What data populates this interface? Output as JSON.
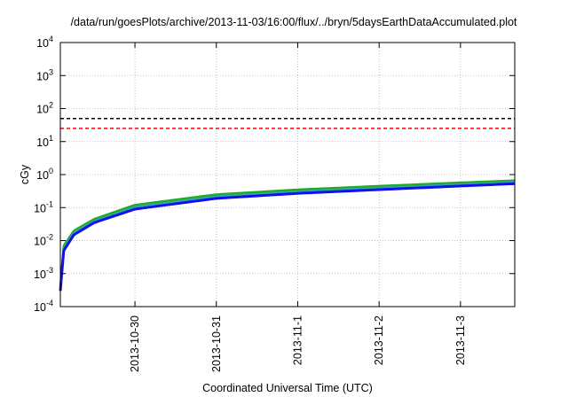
{
  "chart_data": {
    "type": "line",
    "title": "/data/run/goesPlots/archive/2013-11-03/16:00/flux/../bryn/5daysEarthDataAccumulated.plot",
    "xlabel": "Coordinated Universal Time (UTC)",
    "ylabel": "cGy",
    "yscale": "log",
    "ylim": [
      0.0001,
      10000
    ],
    "y_ticks": [
      {
        "value": 0.0001,
        "base": "10",
        "exp": "-4"
      },
      {
        "value": 0.001,
        "base": "10",
        "exp": "-3"
      },
      {
        "value": 0.01,
        "base": "10",
        "exp": "-2"
      },
      {
        "value": 0.1,
        "base": "10",
        "exp": "-1"
      },
      {
        "value": 1,
        "base": "10",
        "exp": "0"
      },
      {
        "value": 10,
        "base": "10",
        "exp": "1"
      },
      {
        "value": 100,
        "base": "10",
        "exp": "2"
      },
      {
        "value": 1000,
        "base": "10",
        "exp": "3"
      },
      {
        "value": 10000,
        "base": "10",
        "exp": "4"
      }
    ],
    "xlim": [
      "2013-10-29T02:00",
      "2013-11-03T16:00"
    ],
    "x_ticks": [
      "2013-10-30",
      "2013-10-31",
      "2013-11-1",
      "2013-11-2",
      "2013-11-3"
    ],
    "grid": true,
    "series": [
      {
        "color": "#22aa22",
        "width": 2.5,
        "style": "solid",
        "x": [
          "2013-10-29T02:00",
          "2013-10-29T03:00",
          "2013-10-29T06:00",
          "2013-10-29T12:00",
          "2013-10-30T00:00",
          "2013-10-31T00:00",
          "2013-11-01T00:00",
          "2013-11-02T00:00",
          "2013-11-03T00:00",
          "2013-11-03T16:00"
        ],
        "values": [
          0.0004,
          0.007,
          0.02,
          0.045,
          0.12,
          0.25,
          0.35,
          0.45,
          0.57,
          0.66
        ]
      },
      {
        "color": "#2aa8a8",
        "width": 2,
        "style": "solid",
        "x": [
          "2013-10-29T02:00",
          "2013-10-29T03:00",
          "2013-10-29T06:00",
          "2013-10-29T12:00",
          "2013-10-30T00:00",
          "2013-10-31T00:00",
          "2013-11-01T00:00",
          "2013-11-02T00:00",
          "2013-11-03T00:00",
          "2013-11-03T16:00"
        ],
        "values": [
          0.00035,
          0.006,
          0.018,
          0.04,
          0.105,
          0.22,
          0.31,
          0.4,
          0.51,
          0.6
        ]
      },
      {
        "color": "#1010ee",
        "width": 3,
        "style": "solid",
        "x": [
          "2013-10-29T02:00",
          "2013-10-29T03:00",
          "2013-10-29T06:00",
          "2013-10-29T12:00",
          "2013-10-30T00:00",
          "2013-10-31T00:00",
          "2013-11-01T00:00",
          "2013-11-02T00:00",
          "2013-11-03T00:00",
          "2013-11-03T16:00"
        ],
        "values": [
          0.0003,
          0.005,
          0.015,
          0.035,
          0.09,
          0.19,
          0.27,
          0.35,
          0.45,
          0.53
        ]
      },
      {
        "color": "#000000",
        "width": 1.5,
        "style": "dashed",
        "x": [
          "2013-10-29T02:00",
          "2013-11-03T16:00"
        ],
        "values": [
          50,
          50
        ]
      },
      {
        "color": "#ff0000",
        "width": 1.5,
        "style": "dashed",
        "x": [
          "2013-10-29T02:00",
          "2013-11-03T16:00"
        ],
        "values": [
          25,
          25
        ]
      }
    ]
  }
}
